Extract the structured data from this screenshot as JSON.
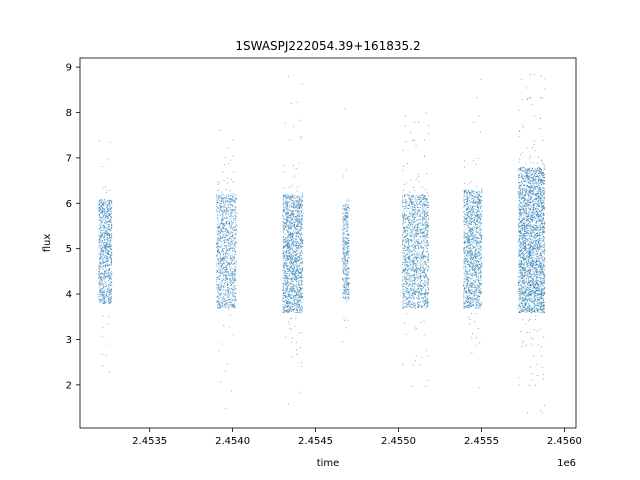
{
  "chart_data": {
    "type": "scatter",
    "title": "1SWASPJ222054.39+161835.2",
    "xlabel": "time",
    "ylabel": "flux",
    "x_offset_label": "1e6",
    "xlim": [
      2453080,
      2456070
    ],
    "ylim": [
      1.05,
      9.2
    ],
    "x_ticks": [
      2453500,
      2454000,
      2454500,
      2455000,
      2455500,
      2456000
    ],
    "x_tick_labels": [
      "2.4535",
      "2.4540",
      "2.4545",
      "2.4550",
      "2.4555",
      "2.4560"
    ],
    "y_ticks": [
      2,
      3,
      4,
      5,
      6,
      7,
      8,
      9
    ],
    "y_tick_labels": [
      "2",
      "3",
      "4",
      "5",
      "6",
      "7",
      "8",
      "9"
    ],
    "grid": false,
    "point_color": "#1f77b4",
    "clusters": [
      {
        "x_start": 2453190,
        "x_end": 2453270,
        "y_min": 3.8,
        "y_max": 6.1,
        "count": 900
      },
      {
        "x_start": 2453900,
        "x_end": 2454020,
        "y_min": 3.7,
        "y_max": 6.2,
        "count": 1100
      },
      {
        "x_start": 2454300,
        "x_end": 2454420,
        "y_min": 3.6,
        "y_max": 6.2,
        "count": 1600
      },
      {
        "x_start": 2454660,
        "x_end": 2454700,
        "y_min": 3.9,
        "y_max": 6.0,
        "count": 400
      },
      {
        "x_start": 2455020,
        "x_end": 2455180,
        "y_min": 3.7,
        "y_max": 6.2,
        "count": 1500
      },
      {
        "x_start": 2455390,
        "x_end": 2455500,
        "y_min": 3.7,
        "y_max": 6.3,
        "count": 1300
      },
      {
        "x_start": 2455720,
        "x_end": 2455880,
        "y_min": 3.6,
        "y_max": 6.8,
        "count": 2800
      }
    ]
  }
}
